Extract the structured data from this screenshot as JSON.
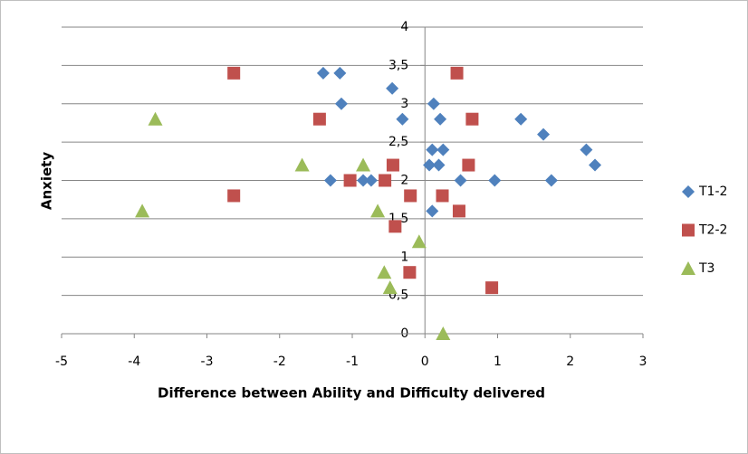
{
  "chart_data": {
    "type": "scatter",
    "x_label": "Difference between Ability and Difficulty delivered",
    "y_label": "Anxiety",
    "xlim": [
      -5,
      3
    ],
    "xticks": [
      -5,
      -4,
      -3,
      -2,
      -1,
      0,
      1,
      2,
      3
    ],
    "ylim": [
      0,
      4
    ],
    "yticks": [
      0,
      {
        "value": 0.5,
        "label": "0,5"
      },
      1,
      {
        "value": 1.5,
        "label": "1,5"
      },
      2,
      {
        "value": 2.5,
        "label": "2,5"
      },
      3,
      {
        "value": 3.5,
        "label": "3,5"
      },
      4
    ],
    "grid": true,
    "legend": "right",
    "series": [
      {
        "name": "T1-2",
        "color": "#4f81bd",
        "marker": "diamond",
        "x": [
          -1.4,
          -1.17,
          -0.45,
          -1.15,
          0.12,
          -0.31,
          0.21,
          1.32,
          1.63,
          2.22,
          2.34,
          0.1,
          0.25,
          0.06,
          0.19,
          -1.3,
          -0.85,
          -0.74,
          0.49,
          0.96,
          1.74,
          0.1
        ],
        "y": [
          3.4,
          3.4,
          3.2,
          3.0,
          3.0,
          2.8,
          2.8,
          2.8,
          2.6,
          2.4,
          2.2,
          2.4,
          2.4,
          2.2,
          2.2,
          2.0,
          2.0,
          2.0,
          2.0,
          2.0,
          2.0,
          1.6
        ]
      },
      {
        "name": "T2-2",
        "color": "#c0504d",
        "marker": "square",
        "x": [
          -2.63,
          0.44,
          -1.45,
          0.65,
          -0.44,
          0.6,
          -1.03,
          -0.55,
          -2.63,
          -0.2,
          0.24,
          0.47,
          -0.41,
          -0.21,
          0.92
        ],
        "y": [
          3.4,
          3.4,
          2.8,
          2.8,
          2.2,
          2.2,
          2.0,
          2.0,
          1.8,
          1.8,
          1.8,
          1.6,
          1.4,
          0.8,
          0.6
        ]
      },
      {
        "name": "T3",
        "color": "#9bbb59",
        "marker": "triangle",
        "x": [
          -3.71,
          -1.69,
          -0.85,
          -3.89,
          -0.65,
          -0.08,
          -0.56,
          -0.48,
          0.25
        ],
        "y": [
          2.8,
          2.2,
          2.2,
          1.6,
          1.6,
          1.2,
          0.8,
          0.6,
          0
        ]
      }
    ]
  }
}
